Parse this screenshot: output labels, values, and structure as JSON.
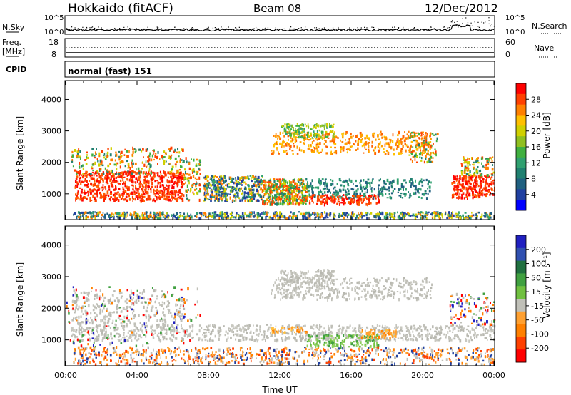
{
  "header": {
    "radar": "Hokkaido (fitACF)",
    "beam": "Beam 08",
    "date": "12/Dec/2012"
  },
  "noise_panel": {
    "left_label": "N.Sky",
    "right_label": "N.Search",
    "left_ticks": [
      "10^5",
      "10^0"
    ],
    "right_ticks": [
      "10^5",
      "10^0"
    ]
  },
  "freq_panel": {
    "left_label_1": "Freq.",
    "left_label_2": "[MHz]",
    "right_label": "Nave",
    "left_ticks": [
      "18",
      "8"
    ],
    "right_ticks": [
      "60",
      "0"
    ]
  },
  "cpid": {
    "label": "CPID",
    "value": "normal (fast) 151"
  },
  "chart_data": [
    {
      "type": "heatmap",
      "title": "Power",
      "ylabel": "Slant Range [km]",
      "xlabel": "",
      "ylim": [
        180,
        4600
      ],
      "xlim_hours": [
        0,
        24
      ],
      "y_ticks": [
        1000,
        2000,
        3000,
        4000
      ],
      "colorbar_label": "Power [dB]",
      "colorbar_ticks": [
        "28",
        "24",
        "20",
        "16",
        "12",
        "8",
        "4"
      ],
      "colorbar_colors": [
        "#ff0000",
        "#ff4000",
        "#ff8000",
        "#ffc000",
        "#d0d000",
        "#90c020",
        "#40b040",
        "#30a070",
        "#208070",
        "#206080",
        "#2040a0",
        "#0000ff"
      ]
    },
    {
      "type": "heatmap",
      "title": "Velocity",
      "ylabel": "Slant Range [km]",
      "xlabel": "Time UT",
      "ylim": [
        180,
        4600
      ],
      "xlim_hours": [
        0,
        24
      ],
      "y_ticks": [
        1000,
        2000,
        3000,
        4000
      ],
      "x_ticks": [
        "00:00",
        "04:00",
        "08:00",
        "12:00",
        "16:00",
        "20:00",
        "00:00"
      ],
      "colorbar_label": "Velocity [m s⁻¹]",
      "colorbar_ticks": [
        "200",
        "100",
        "50",
        "15",
        "-15",
        "-50",
        "-100",
        "-200"
      ],
      "colorbar_colors": [
        "#2020c0",
        "#3050b0",
        "#207040",
        "#40a040",
        "#70c040",
        "#c0c0b8",
        "#ffa030",
        "#ff8000",
        "#ff4000",
        "#ff0000"
      ]
    }
  ]
}
